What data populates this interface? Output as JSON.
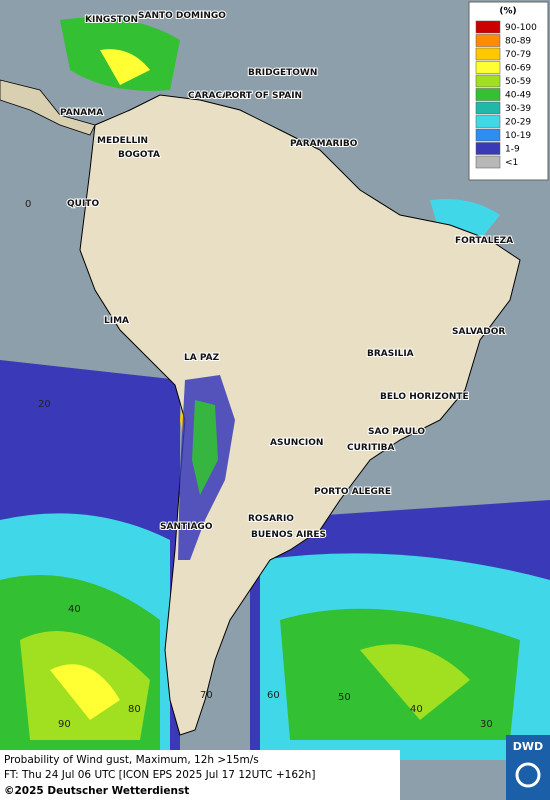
{
  "legend": {
    "title": "(%)",
    "entries": [
      {
        "label": "90-100",
        "color": "#cc0000"
      },
      {
        "label": "80-89",
        "color": "#ff8c00"
      },
      {
        "label": "70-79",
        "color": "#ffc800"
      },
      {
        "label": "60-69",
        "color": "#ffff33"
      },
      {
        "label": "50-59",
        "color": "#a0e020"
      },
      {
        "label": "40-49",
        "color": "#33c033"
      },
      {
        "label": "30-39",
        "color": "#20b8a8"
      },
      {
        "label": "20-29",
        "color": "#40d8e8"
      },
      {
        "label": "10-19",
        "color": "#2f8cf0"
      },
      {
        "label": "1-9",
        "color": "#3a3ab8"
      },
      {
        "label": "<1",
        "color": "#b8b8b8"
      }
    ]
  },
  "cities": [
    "KINGSTON",
    "SANTO DOMINGO",
    "BRIDGETOWN",
    "CARACAS",
    "PORT OF SPAIN",
    "PANAMA",
    "MEDELLIN",
    "BOGOTA",
    "PARAMARIBO",
    "QUITO",
    "FORTALEZA",
    "LIMA",
    "SALVADOR",
    "BRASILIA",
    "LA PAZ",
    "BELO HORIZONTE",
    "SAO PAULO",
    "ASUNCION",
    "CURITIBA",
    "PORTO ALEGRE",
    "ROSARIO",
    "SANTIAGO",
    "BUENOS AIRES"
  ],
  "grid_labels": [
    "0",
    "20",
    "40",
    "90",
    "80",
    "70",
    "60",
    "50",
    "40",
    "30"
  ],
  "footer": {
    "lines": [
      "Probability of Wind gust, Maximum, 12h >15m/s",
      "FT: Thu 24 Jul 06 UTC [ICON EPS 2025 Jul 17 12UTC +162h]",
      "©2025 Deutscher Wetterdienst"
    ],
    "logo": "DWD"
  }
}
